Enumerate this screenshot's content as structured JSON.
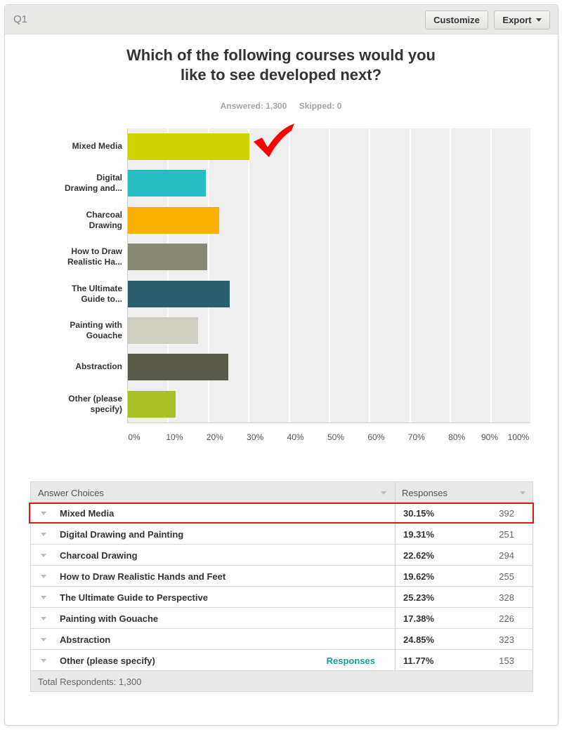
{
  "header": {
    "question_number": "Q1",
    "customize_label": "Customize",
    "export_label": "Export"
  },
  "question": {
    "title_line1": "Which of the following courses would you",
    "title_line2": "like to see developed next?",
    "answered": "Answered: 1,300",
    "skipped": "Skipped: 0"
  },
  "chart_data": {
    "type": "bar",
    "orientation": "horizontal",
    "title": "Which of the following courses would you like to see developed next?",
    "xlabel": "",
    "ylabel": "",
    "xlim": [
      0,
      100
    ],
    "grid": true,
    "categories": [
      "Mixed Media",
      "Digital Drawing and...",
      "Charcoal Drawing",
      "How to Draw Realistic Ha...",
      "The Ultimate Guide to...",
      "Painting with Gouache",
      "Abstraction",
      "Other (please specify)"
    ],
    "values": [
      30.15,
      19.31,
      22.62,
      19.62,
      25.23,
      17.38,
      24.85,
      11.77
    ],
    "colors": [
      "#cdd500",
      "#26bdc0",
      "#f7b000",
      "#888877",
      "#2b5f6c",
      "#cfcdbf",
      "#5a5a4a",
      "#a8c026"
    ],
    "tick_labels": [
      "0%",
      "10%",
      "20%",
      "30%",
      "40%",
      "50%",
      "60%",
      "70%",
      "80%",
      "90%",
      "100%"
    ],
    "annotation": "red checkmark next to Mixed Media bar"
  },
  "chart_labels": [
    {
      "line1": "Mixed Media",
      "line2": ""
    },
    {
      "line1": "Digital",
      "line2": "Drawing and..."
    },
    {
      "line1": "Charcoal",
      "line2": "Drawing"
    },
    {
      "line1": "How to Draw",
      "line2": "Realistic Ha..."
    },
    {
      "line1": "The Ultimate",
      "line2": "Guide to..."
    },
    {
      "line1": "Painting with",
      "line2": "Gouache"
    },
    {
      "line1": "Abstraction",
      "line2": ""
    },
    {
      "line1": "Other (please",
      "line2": "specify)"
    }
  ],
  "table": {
    "col_answer": "Answer Choices",
    "col_responses": "Responses",
    "rows": [
      {
        "label": "Mixed Media",
        "pct": "30.15%",
        "count": "392",
        "highlighted": true
      },
      {
        "label": "Digital Drawing and Painting",
        "pct": "19.31%",
        "count": "251"
      },
      {
        "label": "Charcoal Drawing",
        "pct": "22.62%",
        "count": "294"
      },
      {
        "label": "How to Draw Realistic Hands and Feet",
        "pct": "19.62%",
        "count": "255"
      },
      {
        "label": "The Ultimate Guide to Perspective",
        "pct": "25.23%",
        "count": "328"
      },
      {
        "label": "Painting with Gouache",
        "pct": "17.38%",
        "count": "226"
      },
      {
        "label": "Abstraction",
        "pct": "24.85%",
        "count": "323"
      },
      {
        "label": "Other (please specify)",
        "pct": "11.77%",
        "count": "153",
        "link": "Responses"
      }
    ],
    "total": "Total Respondents: 1,300"
  },
  "colors": {
    "highlight_border": "#e0161c",
    "link": "#1b9a94",
    "checkmark": "#ff0000"
  }
}
